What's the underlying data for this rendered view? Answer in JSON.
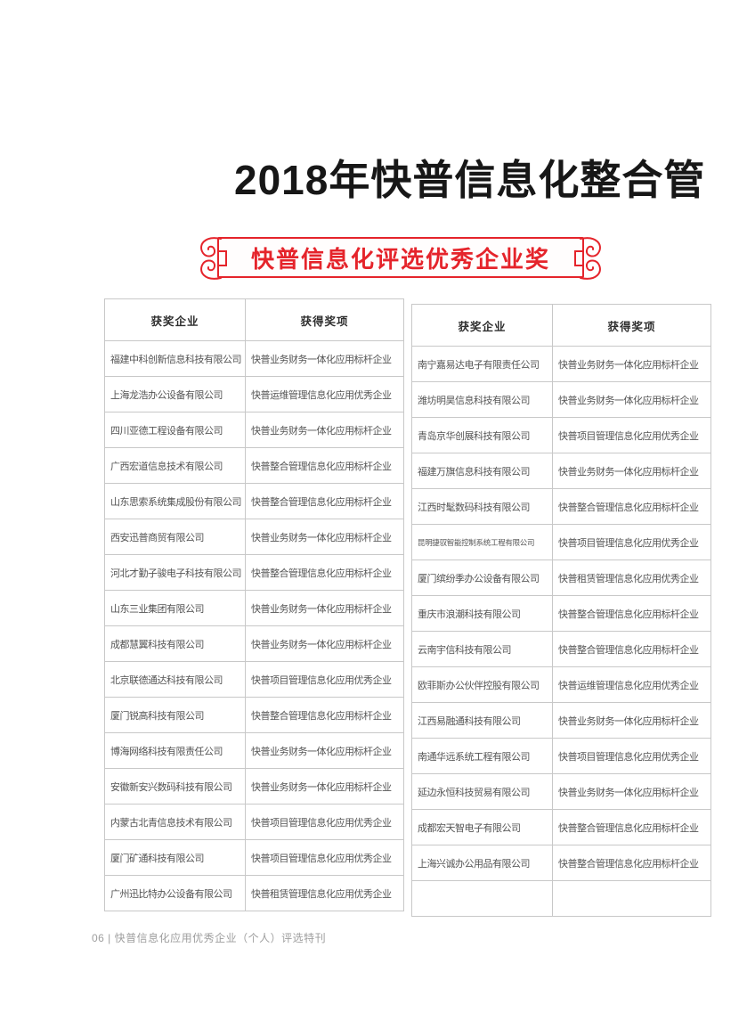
{
  "page": {
    "title": "2018年快普信息化整合管",
    "footer": "06 | 快普信息化应用优秀企业（个人）评选特刊"
  },
  "banner": {
    "label": "快普信息化评选优秀企业奖",
    "left_icon": "chinese-knot-flourish-icon",
    "right_icon": "chinese-knot-flourish-icon"
  },
  "colors": {
    "accent_red": "#e5242b",
    "title_black": "#171717",
    "table_border": "#c8c8c8",
    "cell_text": "#545454",
    "header_text": "#2e2e2e",
    "footer_gray": "#9e9e9e"
  },
  "tables": [
    {
      "headers": [
        "获奖企业",
        "获得奖项"
      ],
      "rows": [
        {
          "company": "福建中科创新信息科技有限公司",
          "award": "快普业务财务一体化应用标杆企业"
        },
        {
          "company": "上海龙浩办公设备有限公司",
          "award": "快普运维管理信息化应用优秀企业"
        },
        {
          "company": "四川亚德工程设备有限公司",
          "award": "快普业务财务一体化应用标杆企业"
        },
        {
          "company": "广西宏道信息技术有限公司",
          "award": "快普整合管理信息化应用标杆企业"
        },
        {
          "company": "山东思索系统集成股份有限公司",
          "award": "快普整合管理信息化应用标杆企业"
        },
        {
          "company": "西安迅普商贸有限公司",
          "award": "快普业务财务一体化应用标杆企业"
        },
        {
          "company": "河北才勤子骏电子科技有限公司",
          "award": "快普整合管理信息化应用标杆企业"
        },
        {
          "company": "山东三业集团有限公司",
          "award": "快普业务财务一体化应用标杆企业"
        },
        {
          "company": "成都慧翼科技有限公司",
          "award": "快普业务财务一体化应用标杆企业"
        },
        {
          "company": "北京联德通达科技有限公司",
          "award": "快普项目管理信息化应用优秀企业"
        },
        {
          "company": "厦门锐高科技有限公司",
          "award": "快普整合管理信息化应用标杆企业"
        },
        {
          "company": "博海网络科技有限责任公司",
          "award": "快普业务财务一体化应用标杆企业"
        },
        {
          "company": "安徽新安兴数码科技有限公司",
          "award": "快普业务财务一体化应用标杆企业"
        },
        {
          "company": "内蒙古北青信息技术有限公司",
          "award": "快普项目管理信息化应用优秀企业"
        },
        {
          "company": "厦门矿通科技有限公司",
          "award": "快普项目管理信息化应用优秀企业"
        },
        {
          "company": "广州迅比特办公设备有限公司",
          "award": "快普租赁管理信息化应用优秀企业"
        }
      ]
    },
    {
      "headers": [
        "获奖企业",
        "获得奖项"
      ],
      "rows": [
        {
          "company": "南宁嘉易达电子有限责任公司",
          "award": "快普业务财务一体化应用标杆企业"
        },
        {
          "company": "潍坊明昊信息科技有限公司",
          "award": "快普业务财务一体化应用标杆企业"
        },
        {
          "company": "青岛京华创展科技有限公司",
          "award": "快普项目管理信息化应用优秀企业"
        },
        {
          "company": "福建万旗信息科技有限公司",
          "award": "快普业务财务一体化应用标杆企业"
        },
        {
          "company": "江西时髦数码科技有限公司",
          "award": "快普整合管理信息化应用标杆企业"
        },
        {
          "company": "昆明捷驭智能控制系统工程有限公司",
          "award": "快普项目管理信息化应用优秀企业"
        },
        {
          "company": "厦门缤纷季办公设备有限公司",
          "award": "快普租赁管理信息化应用优秀企业"
        },
        {
          "company": "重庆市浪潮科技有限公司",
          "award": "快普整合管理信息化应用标杆企业"
        },
        {
          "company": "云南宇信科技有限公司",
          "award": "快普整合管理信息化应用标杆企业"
        },
        {
          "company": "欧菲斯办公伙伴控股有限公司",
          "award": "快普运维管理信息化应用优秀企业"
        },
        {
          "company": "江西易融通科技有限公司",
          "award": "快普业务财务一体化应用标杆企业"
        },
        {
          "company": "南通华远系统工程有限公司",
          "award": "快普项目管理信息化应用优秀企业"
        },
        {
          "company": "延边永恒科技贸易有限公司",
          "award": "快普业务财务一体化应用标杆企业"
        },
        {
          "company": "成都宏天智电子有限公司",
          "award": "快普整合管理信息化应用标杆企业"
        },
        {
          "company": "上海兴诚办公用品有限公司",
          "award": "快普整合管理信息化应用标杆企业"
        },
        {
          "company": "",
          "award": ""
        }
      ]
    }
  ]
}
